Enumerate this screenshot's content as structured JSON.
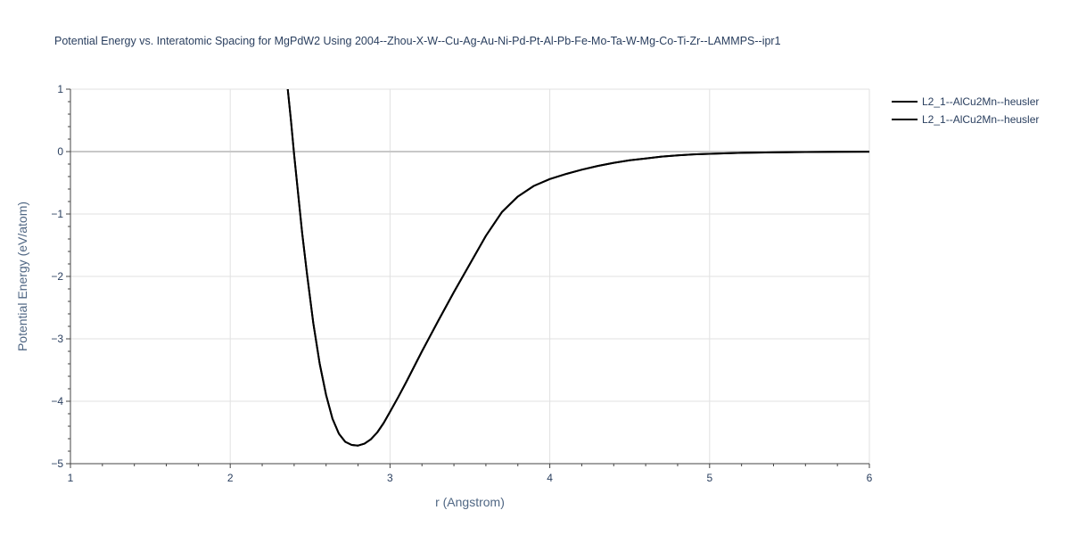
{
  "chart_data": {
    "type": "line",
    "title": "Potential Energy vs. Interatomic Spacing for MgPdW2 Using 2004--Zhou-X-W--Cu-Ag-Au-Ni-Pd-Pt-Al-Pb-Fe-Mo-Ta-W-Mg-Co-Ti-Zr--LAMMPS--ipr1",
    "xlabel": "r (Angstrom)",
    "ylabel": "Potential Energy (eV/atom)",
    "xlim": [
      1,
      6
    ],
    "ylim": [
      -5,
      1
    ],
    "x_ticks": [
      1,
      2,
      3,
      4,
      5,
      6
    ],
    "y_ticks": [
      1,
      0,
      -1,
      -2,
      -3,
      -4,
      -5
    ],
    "y_tick_labels": [
      "1",
      "0",
      "−1",
      "−2",
      "−3",
      "−4",
      "−5"
    ],
    "grid": true,
    "legend_position": "top-right",
    "series": [
      {
        "name": "L2_1--AlCu2Mn--heusler",
        "color": "#000000",
        "x": [
          2.36,
          2.38,
          2.4,
          2.42,
          2.45,
          2.48,
          2.52,
          2.56,
          2.6,
          2.64,
          2.68,
          2.72,
          2.76,
          2.8,
          2.84,
          2.88,
          2.92,
          2.96,
          3.0,
          3.05,
          3.1,
          3.15,
          3.2,
          3.3,
          3.4,
          3.5,
          3.6,
          3.7,
          3.8,
          3.9,
          4.0,
          4.1,
          4.2,
          4.3,
          4.4,
          4.5,
          4.6,
          4.7,
          4.8,
          4.9,
          5.0,
          5.2,
          5.4,
          5.6,
          5.8,
          6.0
        ],
        "y": [
          1.0,
          0.5,
          -0.05,
          -0.55,
          -1.3,
          -1.95,
          -2.75,
          -3.4,
          -3.9,
          -4.28,
          -4.52,
          -4.65,
          -4.7,
          -4.71,
          -4.68,
          -4.61,
          -4.5,
          -4.35,
          -4.17,
          -3.94,
          -3.7,
          -3.45,
          -3.2,
          -2.72,
          -2.25,
          -1.8,
          -1.35,
          -0.97,
          -0.72,
          -0.55,
          -0.44,
          -0.36,
          -0.29,
          -0.23,
          -0.18,
          -0.14,
          -0.11,
          -0.08,
          -0.06,
          -0.045,
          -0.035,
          -0.02,
          -0.012,
          -0.007,
          -0.004,
          -0.002
        ]
      },
      {
        "name": "L2_1--AlCu2Mn--heusler",
        "color": "#000000",
        "x": [
          2.36,
          2.38,
          2.4,
          2.42,
          2.45,
          2.48,
          2.52,
          2.56,
          2.6,
          2.64,
          2.68,
          2.72,
          2.76,
          2.8,
          2.84,
          2.88,
          2.92,
          2.96,
          3.0,
          3.05,
          3.1,
          3.15,
          3.2,
          3.3,
          3.4,
          3.5,
          3.6,
          3.7,
          3.8,
          3.9,
          4.0,
          4.1,
          4.2,
          4.3,
          4.4,
          4.5,
          4.6,
          4.7,
          4.8,
          4.9,
          5.0,
          5.2,
          5.4,
          5.6,
          5.8,
          6.0
        ],
        "y": [
          1.0,
          0.5,
          -0.05,
          -0.55,
          -1.3,
          -1.95,
          -2.75,
          -3.4,
          -3.9,
          -4.28,
          -4.52,
          -4.65,
          -4.7,
          -4.71,
          -4.68,
          -4.61,
          -4.5,
          -4.35,
          -4.17,
          -3.94,
          -3.7,
          -3.45,
          -3.2,
          -2.72,
          -2.25,
          -1.8,
          -1.35,
          -0.97,
          -0.72,
          -0.55,
          -0.44,
          -0.36,
          -0.29,
          -0.23,
          -0.18,
          -0.14,
          -0.11,
          -0.08,
          -0.06,
          -0.045,
          -0.035,
          -0.02,
          -0.012,
          -0.007,
          -0.004,
          -0.002
        ]
      }
    ]
  }
}
